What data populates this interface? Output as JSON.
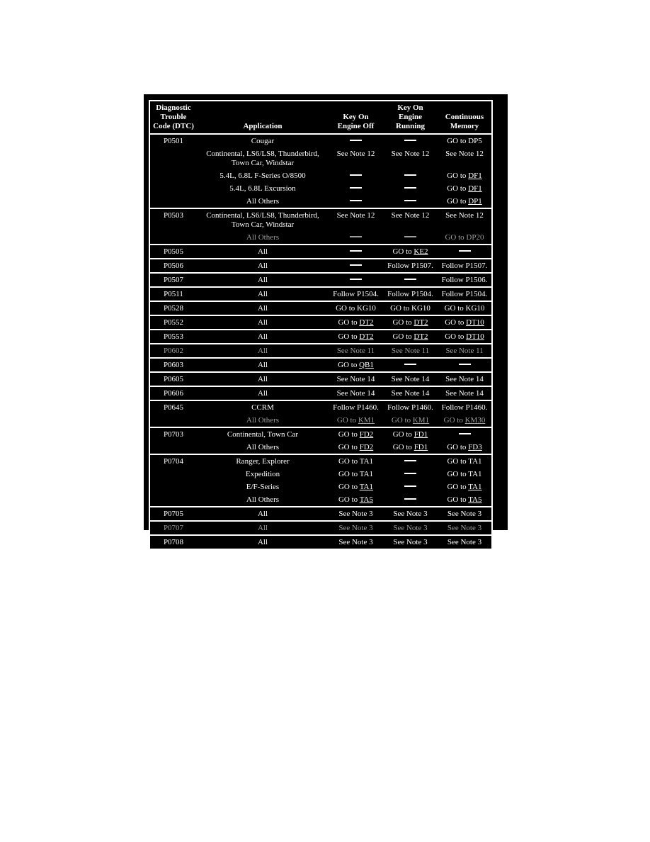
{
  "colors": {
    "page_background": "#ffffff",
    "table_background": "#000000",
    "text": "#ffffff",
    "faded_text": "#9d9d9d"
  },
  "table": {
    "headers": [
      {
        "lines": [
          "Diagnostic",
          "Trouble",
          "Code (DTC)"
        ]
      },
      {
        "lines": [
          "Application"
        ]
      },
      {
        "lines": [
          "Key On",
          "Engine Off"
        ]
      },
      {
        "lines": [
          "Key On",
          "Engine",
          "Running"
        ]
      },
      {
        "lines": [
          "Continuous",
          "Memory"
        ]
      }
    ],
    "groups": [
      {
        "dtc": "P0501",
        "rows": [
          {
            "app": "Cougar",
            "c": [
              {
                "d": true
              },
              {
                "d": true
              },
              {
                "t": "GO to DP5"
              }
            ]
          },
          {
            "app": "Continental, LS6/LS8, Thunderbird, Town Car, Windstar",
            "c": [
              {
                "t": "See Note 12"
              },
              {
                "t": "See Note 12"
              },
              {
                "t": "See Note 12"
              }
            ]
          },
          {
            "app": "5.4L, 6.8L F-Series O/8500",
            "c": [
              {
                "d": true
              },
              {
                "d": true
              },
              {
                "t": "GO to ",
                "u": "DF1"
              }
            ]
          },
          {
            "app": "5.4L, 6.8L Excursion",
            "c": [
              {
                "d": true
              },
              {
                "d": true
              },
              {
                "t": "GO to ",
                "u": "DF1"
              }
            ]
          },
          {
            "app": "All Others",
            "c": [
              {
                "d": true
              },
              {
                "d": true
              },
              {
                "t": "GO to ",
                "u": "DP1"
              }
            ]
          }
        ]
      },
      {
        "dtc": "P0503",
        "rows": [
          {
            "app": "Continental, LS6/LS8, Thunderbird, Town Car, Windstar",
            "c": [
              {
                "t": "See Note 12"
              },
              {
                "t": "See Note 12"
              },
              {
                "t": "See Note 12"
              }
            ]
          },
          {
            "app": "All Others",
            "faded": true,
            "c": [
              {
                "d": true
              },
              {
                "d": true
              },
              {
                "t": "GO to DP20"
              }
            ]
          }
        ]
      },
      {
        "dtc": "P0505",
        "rows": [
          {
            "app": "All",
            "c": [
              {
                "d": true
              },
              {
                "t": "GO to ",
                "u": "KE2"
              },
              {
                "d": true
              }
            ]
          }
        ]
      },
      {
        "dtc": "P0506",
        "rows": [
          {
            "app": "All",
            "c": [
              {
                "d": true
              },
              {
                "t": "Follow P1507."
              },
              {
                "t": "Follow P1507."
              }
            ]
          }
        ]
      },
      {
        "dtc": "P0507",
        "rows": [
          {
            "app": "All",
            "c": [
              {
                "d": true
              },
              {
                "d": true
              },
              {
                "t": "Follow P1506."
              }
            ]
          }
        ]
      },
      {
        "dtc": "P0511",
        "rows": [
          {
            "app": "All",
            "c": [
              {
                "t": "Follow P1504."
              },
              {
                "t": "Follow P1504."
              },
              {
                "t": "Follow P1504."
              }
            ]
          }
        ]
      },
      {
        "dtc": "P0528",
        "rows": [
          {
            "app": "All",
            "c": [
              {
                "t": "GO to KG10"
              },
              {
                "t": "GO to KG10"
              },
              {
                "t": "GO to KG10"
              }
            ]
          }
        ]
      },
      {
        "dtc": "P0552",
        "rows": [
          {
            "app": "All",
            "c": [
              {
                "t": "GO to ",
                "u": "DT2"
              },
              {
                "t": "GO to ",
                "u": "DT2"
              },
              {
                "t": "GO to ",
                "u": "DT10"
              }
            ]
          }
        ]
      },
      {
        "dtc": "P0553",
        "rows": [
          {
            "app": "All",
            "c": [
              {
                "t": "GO to ",
                "u": "DT2"
              },
              {
                "t": "GO to ",
                "u": "DT2"
              },
              {
                "t": "GO to ",
                "u": "DT10"
              }
            ]
          }
        ]
      },
      {
        "dtc": "P0602",
        "rows": [
          {
            "app": "All",
            "faded": true,
            "c": [
              {
                "t": "See Note 11"
              },
              {
                "t": "See Note 11"
              },
              {
                "t": "See Note 11"
              }
            ]
          }
        ]
      },
      {
        "dtc": "P0603",
        "rows": [
          {
            "app": "All",
            "c": [
              {
                "t": "GO to ",
                "u": "QB1"
              },
              {
                "d": true
              },
              {
                "d": true
              }
            ]
          }
        ]
      },
      {
        "dtc": "P0605",
        "rows": [
          {
            "app": "All",
            "c": [
              {
                "t": "See Note 14"
              },
              {
                "t": "See Note 14"
              },
              {
                "t": "See Note 14"
              }
            ]
          }
        ]
      },
      {
        "dtc": "P0606",
        "rows": [
          {
            "app": "All",
            "c": [
              {
                "t": "See Note 14"
              },
              {
                "t": "See Note 14"
              },
              {
                "t": "See Note 14"
              }
            ]
          }
        ]
      },
      {
        "dtc": "P0645",
        "rows": [
          {
            "app": "CCRM",
            "c": [
              {
                "t": "Follow P1460."
              },
              {
                "t": "Follow P1460."
              },
              {
                "t": "Follow P1460."
              }
            ]
          },
          {
            "app": "All Others",
            "faded": true,
            "c": [
              {
                "t": "GO to ",
                "u": "KM1"
              },
              {
                "t": "GO to ",
                "u": "KM1"
              },
              {
                "t": "GO to ",
                "u": "KM30"
              }
            ]
          }
        ]
      },
      {
        "dtc": "P0703",
        "rows": [
          {
            "app": "Continental, Town Car",
            "c": [
              {
                "t": "GO to ",
                "u": "FD2"
              },
              {
                "t": "GO to ",
                "u": "FD1"
              },
              {
                "d": true
              }
            ]
          },
          {
            "app": "All Others",
            "c": [
              {
                "t": "GO to ",
                "u": "FD2"
              },
              {
                "t": "GO to ",
                "u": "FD1"
              },
              {
                "t": "GO to ",
                "u": "FD3"
              }
            ]
          }
        ]
      },
      {
        "dtc": "P0704",
        "rows": [
          {
            "app": "Ranger, Explorer",
            "c": [
              {
                "t": "GO to TA1"
              },
              {
                "d": true
              },
              {
                "t": "GO to TA1"
              }
            ]
          },
          {
            "app": "Expedition",
            "c": [
              {
                "t": "GO to TA1"
              },
              {
                "d": true
              },
              {
                "t": "GO to TA1"
              }
            ]
          },
          {
            "app": "E/F-Series",
            "c": [
              {
                "t": "GO to ",
                "u": "TA1"
              },
              {
                "d": true
              },
              {
                "t": "GO to ",
                "u": "TA1"
              }
            ]
          },
          {
            "app": "All Others",
            "c": [
              {
                "t": "GO to ",
                "u": "TA5"
              },
              {
                "d": true
              },
              {
                "t": "GO to ",
                "u": "TA5"
              }
            ]
          }
        ]
      },
      {
        "dtc": "P0705",
        "rows": [
          {
            "app": "All",
            "c": [
              {
                "t": "See Note 3"
              },
              {
                "t": "See Note 3"
              },
              {
                "t": "See Note 3"
              }
            ]
          }
        ]
      },
      {
        "dtc": "P0707",
        "rows": [
          {
            "app": "All",
            "faded": true,
            "c": [
              {
                "t": "See Note 3"
              },
              {
                "t": "See Note 3"
              },
              {
                "t": "See Note 3"
              }
            ]
          }
        ]
      },
      {
        "dtc": "P0708",
        "rows": [
          {
            "app": "All",
            "c": [
              {
                "t": "See Note 3"
              },
              {
                "t": "See Note 3"
              },
              {
                "t": "See Note 3"
              }
            ]
          }
        ]
      }
    ]
  }
}
